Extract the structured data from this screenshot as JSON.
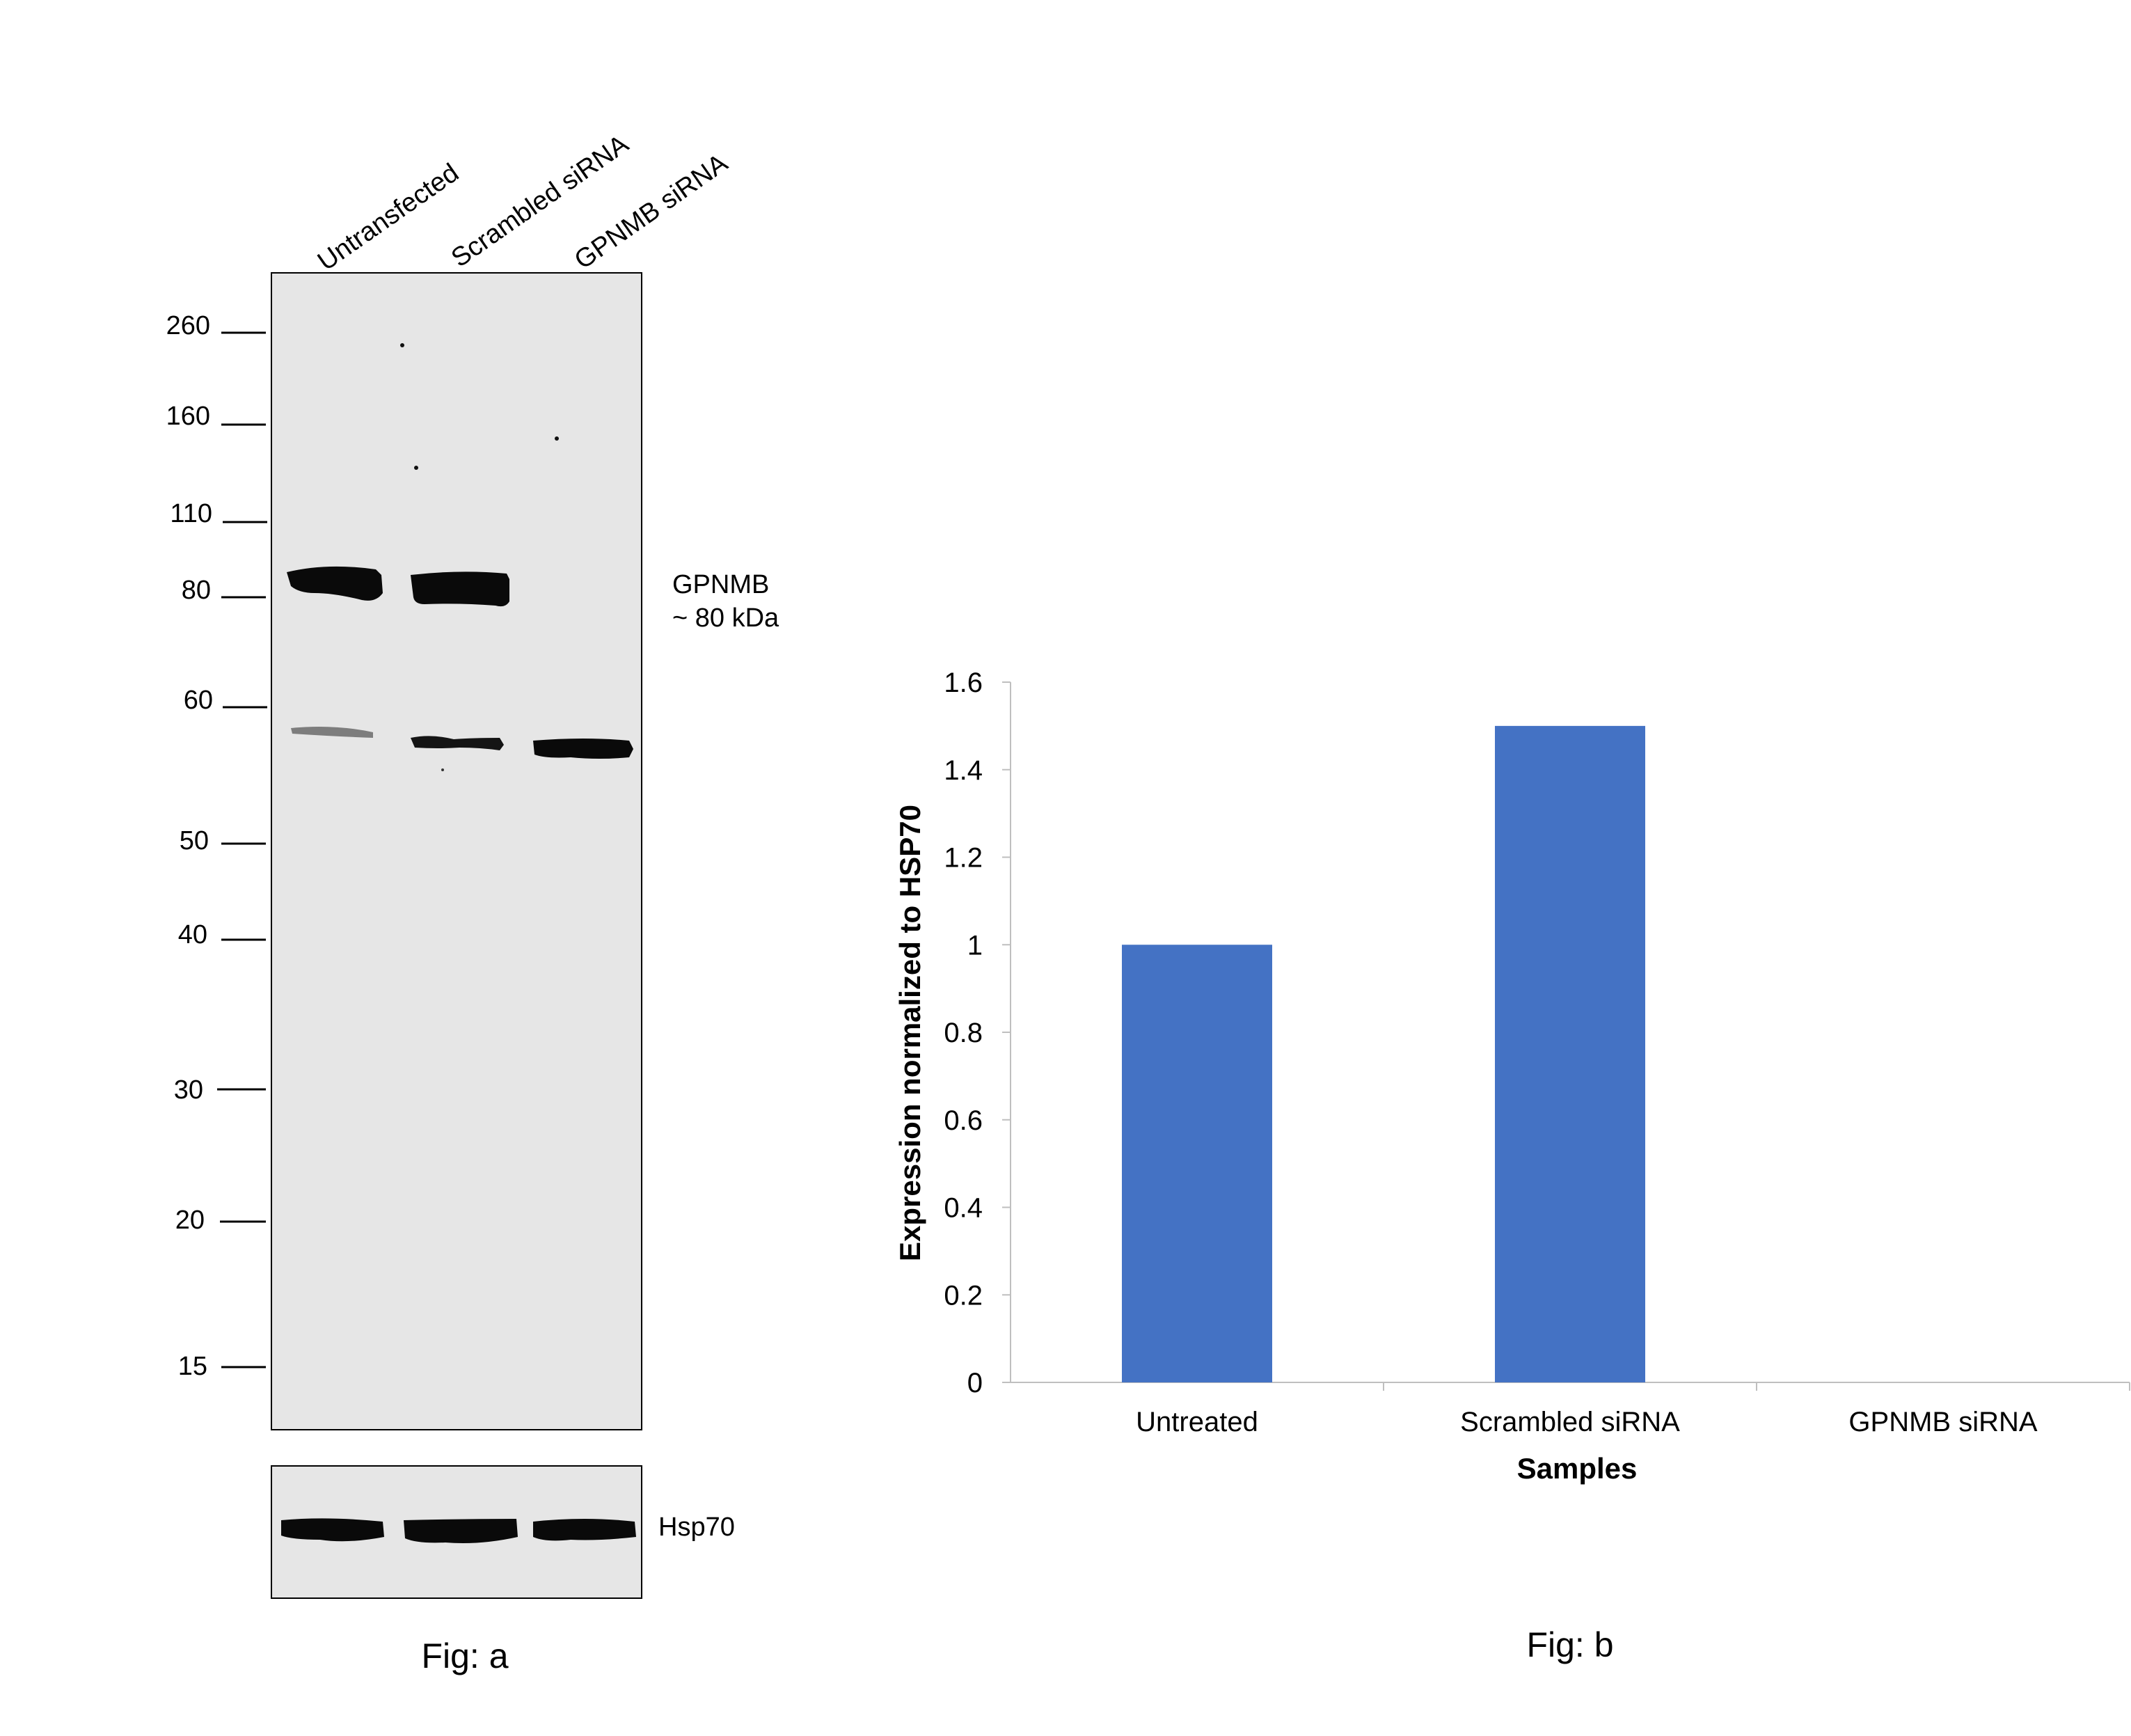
{
  "panel_a": {
    "caption": "Fig: a",
    "lanes": [
      "Untransfected",
      "Scrambled siRNA",
      "GPNMB siRNA"
    ],
    "markers": [
      "260",
      "160",
      "110",
      "80",
      "60",
      "50",
      "40",
      "30",
      "20",
      "15"
    ],
    "band_label_line1": "GPNMB",
    "band_label_line2": "~ 80 kDa",
    "loading_label": "Hsp70",
    "colors": {
      "membrane": "#e6e6e6",
      "band": "#0a0a0a"
    }
  },
  "panel_b": {
    "caption": "Fig: b"
  },
  "chart_data": {
    "type": "bar",
    "categories": [
      "Untreated",
      "Scrambled siRNA",
      "GPNMB siRNA"
    ],
    "values": [
      1.0,
      1.5,
      0
    ],
    "xlabel": "Samples",
    "ylabel": "Expression normalized to HSP70",
    "ylim": [
      0,
      1.6
    ],
    "yticks": [
      "0",
      "0.2",
      "0.4",
      "0.6",
      "0.8",
      "1",
      "1.2",
      "1.4",
      "1.6"
    ],
    "grid": false,
    "color": "#4472c4"
  }
}
